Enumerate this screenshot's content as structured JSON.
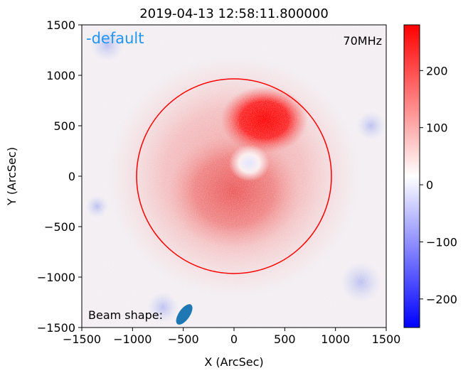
{
  "chart_data": {
    "type": "heatmap",
    "title": "2019-04-13 12:58:11.800000",
    "xlabel": "X (ArcSec)",
    "ylabel": "Y (ArcSec)",
    "xlim": [
      -1500,
      1500
    ],
    "ylim": [
      -1500,
      1500
    ],
    "x_ticks": [
      -1500,
      -1000,
      -500,
      0,
      500,
      1000,
      1500
    ],
    "y_ticks": [
      -1500,
      -1000,
      -500,
      0,
      500,
      1000,
      1500
    ],
    "colormap": "bwr",
    "colorbar_range": [
      -250,
      280
    ],
    "colorbar_ticks": [
      -200,
      -100,
      0,
      100,
      200
    ],
    "annotations": {
      "label": "-default",
      "frequency": "70MHz",
      "beam_text": "Beam shape:"
    },
    "solar_limb": {
      "center": [
        0,
        0
      ],
      "radius": 960,
      "color": "#ff0000"
    },
    "beam": {
      "center": [
        -490,
        -1370
      ],
      "major": 130,
      "minor": 60,
      "angle_deg": 55,
      "color": "#1f77b4"
    },
    "features": [
      {
        "name": "bright-source",
        "x": 300,
        "y": 560,
        "value": 280
      },
      {
        "name": "central-region",
        "x": 0,
        "y": -150,
        "value": 150
      },
      {
        "name": "dim-hole",
        "x": 150,
        "y": 130,
        "value": 20
      },
      {
        "name": "outer-halo",
        "x": 0,
        "y": 0,
        "value": 60
      },
      {
        "name": "background",
        "value": -40
      }
    ]
  },
  "colors": {
    "limb": "#ff0000",
    "label_blue": "#2196f3",
    "beam": "#1f77b4"
  }
}
